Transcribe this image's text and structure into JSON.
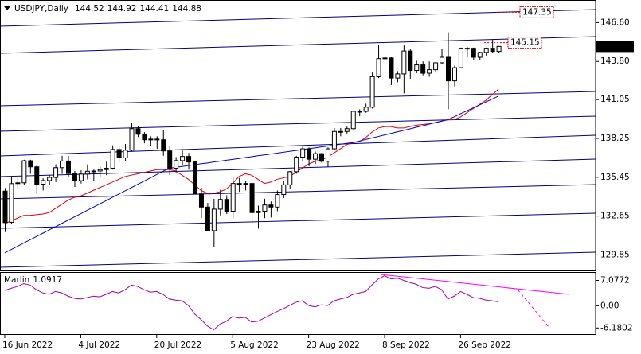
{
  "chart_data": [
    {
      "type": "candlestick",
      "title": "USDJPY,Daily",
      "categories": [
        "16 Jun 2022",
        null,
        null,
        null,
        null,
        null,
        null,
        null,
        null,
        null,
        null,
        null,
        "4 Jul 2022",
        null,
        null,
        null,
        null,
        null,
        null,
        null,
        null,
        null,
        null,
        null,
        "20 Jul 2022",
        null,
        null,
        null,
        null,
        null,
        null,
        null,
        null,
        null,
        null,
        null,
        "5 Aug 2022",
        null,
        null,
        null,
        null,
        null,
        null,
        null,
        null,
        null,
        null,
        null,
        "23 Aug 2022",
        null,
        null,
        null,
        null,
        null,
        null,
        null,
        null,
        null,
        null,
        null,
        "8 Sep 2022",
        null,
        null,
        null,
        null,
        null,
        null,
        null,
        null,
        null,
        null,
        null,
        "26 Sep 2022",
        null,
        null,
        null,
        null,
        null,
        null
      ],
      "ohlc": {
        "open": [
          134.45,
          132.2,
          135.0,
          135.05,
          136.64,
          136.2,
          134.95,
          135.21,
          135.44,
          136.14,
          136.62,
          135.72,
          135.2,
          135.68,
          135.88,
          135.9,
          136.0,
          136.1,
          137.45,
          136.85,
          137.4,
          138.95,
          138.55,
          138.15,
          138.2,
          138.15,
          137.35,
          136.1,
          136.65,
          136.95,
          136.55,
          134.25,
          133.3,
          131.6,
          133.15,
          133.85,
          133.0,
          135.0,
          134.95,
          135.0,
          132.9,
          133.0,
          133.45,
          133.3,
          134.2,
          134.9,
          135.85,
          136.9,
          137.5,
          136.75,
          137.15,
          136.6,
          137.5,
          138.75,
          138.75,
          138.95,
          140.2,
          140.2,
          140.5,
          142.7,
          144.0,
          144.05,
          142.6,
          142.9,
          144.55,
          143.15,
          143.55,
          142.95,
          143.2,
          143.7,
          144.1,
          142.4,
          143.35,
          144.75,
          144.75,
          144.1,
          144.45,
          144.75,
          144.52
        ],
        "high": [
          134.67,
          135.45,
          135.45,
          136.71,
          136.71,
          136.35,
          135.37,
          135.6,
          136.38,
          137.0,
          136.99,
          135.9,
          135.95,
          136.38,
          136.0,
          136.2,
          136.57,
          137.75,
          137.7,
          137.85,
          139.38,
          139.1,
          138.7,
          138.4,
          138.4,
          138.85,
          137.75,
          136.9,
          137.45,
          137.2,
          136.6,
          134.7,
          133.6,
          133.9,
          134.55,
          134.15,
          135.5,
          135.4,
          135.2,
          135.05,
          133.4,
          133.9,
          133.7,
          134.5,
          135.2,
          135.9,
          137.0,
          137.7,
          137.6,
          137.3,
          137.2,
          137.6,
          139.0,
          139.0,
          139.1,
          140.25,
          140.35,
          140.75,
          143.0,
          144.99,
          144.5,
          144.1,
          143.1,
          144.95,
          144.7,
          143.85,
          143.8,
          143.8,
          143.7,
          144.7,
          145.9,
          143.5,
          144.8,
          144.85,
          144.8,
          144.5,
          144.8,
          145.4,
          144.92
        ],
        "low": [
          131.5,
          132.05,
          134.6,
          134.9,
          135.7,
          134.27,
          134.5,
          134.9,
          135.1,
          135.7,
          135.5,
          134.75,
          135.0,
          135.3,
          135.2,
          135.5,
          135.6,
          136.0,
          136.55,
          136.6,
          137.3,
          138.35,
          137.9,
          137.7,
          137.5,
          137.0,
          135.6,
          135.8,
          136.35,
          136.0,
          134.2,
          132.5,
          131.6,
          130.4,
          132.7,
          132.8,
          132.5,
          134.4,
          134.5,
          132.1,
          131.75,
          132.5,
          132.55,
          133.0,
          133.95,
          134.6,
          135.7,
          136.6,
          136.25,
          136.4,
          136.5,
          136.2,
          137.4,
          138.4,
          138.6,
          138.9,
          139.85,
          140.1,
          140.4,
          142.6,
          143.0,
          142.1,
          142.3,
          141.5,
          142.55,
          142.95,
          142.8,
          142.7,
          143.0,
          143.6,
          140.35,
          142.0,
          143.3,
          144.1,
          143.9,
          143.9,
          144.2,
          144.4,
          144.41
        ],
        "close": [
          132.18,
          134.99,
          135.05,
          136.64,
          136.2,
          134.95,
          135.21,
          135.44,
          136.14,
          136.62,
          135.72,
          135.2,
          135.68,
          135.88,
          135.9,
          136.0,
          136.1,
          137.45,
          136.85,
          137.4,
          138.95,
          138.55,
          138.15,
          138.2,
          138.15,
          137.35,
          136.1,
          136.65,
          136.95,
          136.55,
          134.25,
          133.3,
          131.6,
          133.15,
          133.85,
          133.0,
          135.0,
          134.95,
          135.0,
          132.9,
          133.0,
          133.45,
          133.3,
          134.2,
          134.9,
          135.85,
          136.9,
          137.5,
          136.75,
          137.15,
          136.6,
          137.5,
          138.75,
          138.75,
          138.95,
          140.2,
          140.2,
          140.5,
          142.7,
          144.0,
          144.05,
          142.6,
          142.9,
          144.55,
          143.15,
          143.55,
          142.95,
          143.2,
          143.7,
          144.1,
          142.4,
          143.35,
          144.75,
          144.75,
          144.1,
          144.45,
          144.75,
          144.52,
          144.88
        ]
      },
      "up_color": "#ffffff",
      "down_color": "#000000",
      "outline": "#000000",
      "series": [
        {
          "color": "#e00000",
          "values": [
            132.1,
            132.3,
            132.5,
            132.7,
            132.7,
            132.75,
            132.8,
            132.9,
            133.2,
            133.5,
            133.8,
            134.0,
            134.1,
            134.3,
            134.5,
            134.7,
            134.9,
            135.1,
            135.3,
            135.5,
            135.6,
            135.7,
            135.8,
            135.9,
            136.0,
            136.0,
            136.0,
            135.9,
            135.6,
            135.3,
            134.9,
            134.5,
            134.3,
            134.3,
            134.4,
            134.6,
            135.0,
            135.5,
            135.7,
            135.6,
            135.3,
            135.0,
            135.1,
            135.3,
            135.4,
            135.5,
            135.8,
            136.1,
            136.4,
            136.6,
            136.7,
            136.9,
            137.2,
            137.5,
            137.8,
            137.95,
            138.0,
            138.3,
            138.7,
            139.0,
            139.1,
            139.1,
            139.0,
            139.0,
            139.1,
            139.2,
            139.25,
            139.3,
            139.4,
            139.5,
            139.6,
            139.6,
            139.8,
            140.1,
            140.4,
            140.7,
            141.0,
            141.4,
            141.8
          ]
        },
        {
          "color": "#0000c8",
          "values": [
            130.0,
            130.24,
            130.47,
            130.71,
            130.94,
            131.18,
            131.41,
            131.65,
            131.88,
            132.12,
            132.35,
            132.59,
            132.82,
            133.06,
            133.29,
            133.53,
            133.76,
            134.0,
            134.23,
            134.47,
            134.7,
            134.94,
            135.17,
            135.41,
            135.64,
            135.88,
            136.1,
            136.16,
            136.23,
            136.29,
            136.36,
            136.42,
            136.48,
            136.55,
            136.61,
            136.68,
            136.74,
            136.8,
            136.87,
            136.93,
            137.0,
            137.06,
            137.12,
            137.19,
            137.25,
            137.32,
            137.38,
            137.44,
            137.51,
            137.57,
            137.64,
            137.7,
            137.76,
            137.83,
            137.89,
            137.95,
            138.06,
            138.17,
            138.28,
            138.39,
            138.5,
            138.61,
            138.72,
            138.83,
            138.94,
            139.05,
            139.16,
            139.27,
            139.38,
            139.49,
            139.6,
            139.81,
            140.03,
            140.24,
            140.45,
            140.66,
            140.88,
            141.09,
            141.3
          ]
        }
      ],
      "levels": [
        147.35,
        145.15
      ],
      "level_color": "#e00000",
      "ylim": [
        128.7,
        148.2
      ],
      "yticks": [
        {
          "value": 146.6,
          "label": "146.60"
        },
        {
          "value": 143.8,
          "label": "143.80"
        },
        141.05,
        138.25,
        135.45,
        132.65,
        129.85
      ],
      "grid": false
    },
    {
      "type": "line",
      "title": "Marlin",
      "series": [
        {
          "color": "#a000a0",
          "values": [
            4.3,
            4.9,
            5.4,
            6.2,
            5.8,
            4.5,
            3.6,
            3.2,
            4.0,
            3.6,
            2.7,
            2.1,
            1.9,
            2.3,
            2.7,
            2.5,
            3.2,
            4.0,
            3.6,
            4.5,
            5.8,
            5.4,
            4.5,
            3.8,
            4.0,
            3.2,
            1.9,
            1.6,
            1.4,
            0.1,
            -2.3,
            -3.8,
            -5.6,
            -6.7,
            -5.1,
            -4.3,
            -3.0,
            -3.4,
            -3.2,
            -4.5,
            -4.3,
            -3.4,
            -2.5,
            -1.6,
            -0.8,
            0.1,
            1.0,
            1.4,
            0.1,
            -0.3,
            0.3,
            0.1,
            1.4,
            1.9,
            2.3,
            3.2,
            3.6,
            4.0,
            5.8,
            7.5,
            8.4,
            7.5,
            7.7,
            7.1,
            6.5,
            6.0,
            5.1,
            4.9,
            5.4,
            4.5,
            1.9,
            2.7,
            4.0,
            3.2,
            2.3,
            2.1,
            1.6,
            1.4,
            1.0917
          ]
        }
      ],
      "ylim": [
        -8,
        9.3
      ],
      "yticks": [
        7.0772,
        {
          "value": 0,
          "label": "0.00"
        },
        -6.1802
      ],
      "grid": false
    }
  ]
}
